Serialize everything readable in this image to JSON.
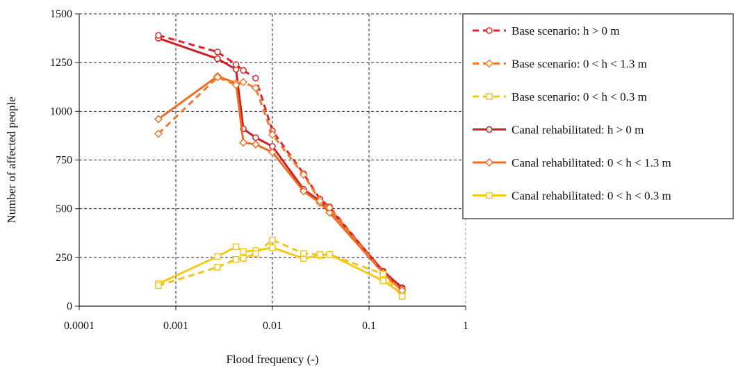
{
  "chart_data": {
    "type": "line",
    "title": "",
    "xlabel": "Flood frequency (-)",
    "ylabel": "Number of affected people",
    "x_scale": "log",
    "xlim": [
      0.0001,
      1
    ],
    "ylim": [
      0,
      1500
    ],
    "x_ticks": [
      0.0001,
      0.001,
      0.01,
      0.1,
      1
    ],
    "x_tick_labels": [
      "0.0001",
      "0.001",
      "0.01",
      "0.1",
      "1"
    ],
    "y_ticks": [
      0,
      250,
      500,
      750,
      1000,
      1250,
      1500
    ],
    "y_tick_labels": [
      "0",
      "250",
      "500",
      "750",
      "1000",
      "1250",
      "1500"
    ],
    "grid": true,
    "legend_position": "top-right, outside plot",
    "series": [
      {
        "name": "Base scenario: h > 0 m",
        "color": "#e0242a",
        "dash": true,
        "marker": "circle",
        "x": [
          0.00066,
          0.0027,
          0.0042,
          0.005,
          0.0067,
          0.01,
          0.021,
          0.031,
          0.039,
          0.14,
          0.22
        ],
        "y": [
          1390,
          1305,
          1240,
          1210,
          1170,
          900,
          680,
          550,
          510,
          175,
          90
        ]
      },
      {
        "name": "Base scenario: 0 < h < 1.3 m",
        "color": "#ef7a2c",
        "dash": true,
        "marker": "diamond",
        "x": [
          0.00066,
          0.0027,
          0.0042,
          0.005,
          0.0067,
          0.01,
          0.021,
          0.031,
          0.039,
          0.14,
          0.22
        ],
        "y": [
          885,
          1175,
          1135,
          1150,
          1120,
          880,
          675,
          540,
          505,
          170,
          80
        ]
      },
      {
        "name": "Base scenario: 0 < h < 0.3 m",
        "color": "#f4c419",
        "dash": true,
        "marker": "square",
        "x": [
          0.00066,
          0.0027,
          0.0042,
          0.005,
          0.0067,
          0.01,
          0.021,
          0.031,
          0.039,
          0.14,
          0.22
        ],
        "y": [
          105,
          200,
          240,
          245,
          270,
          340,
          270,
          265,
          265,
          165,
          50
        ]
      },
      {
        "name": "Canal rehabilitated: h > 0 m",
        "color": "#d01e24",
        "dash": false,
        "marker": "circle",
        "x": [
          0.00066,
          0.0027,
          0.0042,
          0.005,
          0.0067,
          0.01,
          0.021,
          0.031,
          0.039,
          0.14,
          0.22
        ],
        "y": [
          1375,
          1270,
          1215,
          910,
          865,
          820,
          600,
          540,
          500,
          180,
          95
        ]
      },
      {
        "name": "Canal rehabilitated: 0 < h < 1.3 m",
        "color": "#ee6c20",
        "dash": false,
        "marker": "diamond",
        "x": [
          0.00066,
          0.0027,
          0.0042,
          0.005,
          0.0067,
          0.01,
          0.021,
          0.031,
          0.039,
          0.14,
          0.22
        ],
        "y": [
          960,
          1180,
          1145,
          840,
          830,
          790,
          590,
          530,
          480,
          170,
          80
        ]
      },
      {
        "name": "Canal rehabilitated: 0 < h < 0.3 m",
        "color": "#f7c81a",
        "dash": false,
        "marker": "square",
        "x": [
          0.00066,
          0.0027,
          0.0042,
          0.005,
          0.0067,
          0.01,
          0.021,
          0.031,
          0.039,
          0.14,
          0.22
        ],
        "y": [
          115,
          255,
          305,
          280,
          285,
          300,
          245,
          260,
          265,
          130,
          65
        ]
      }
    ]
  }
}
